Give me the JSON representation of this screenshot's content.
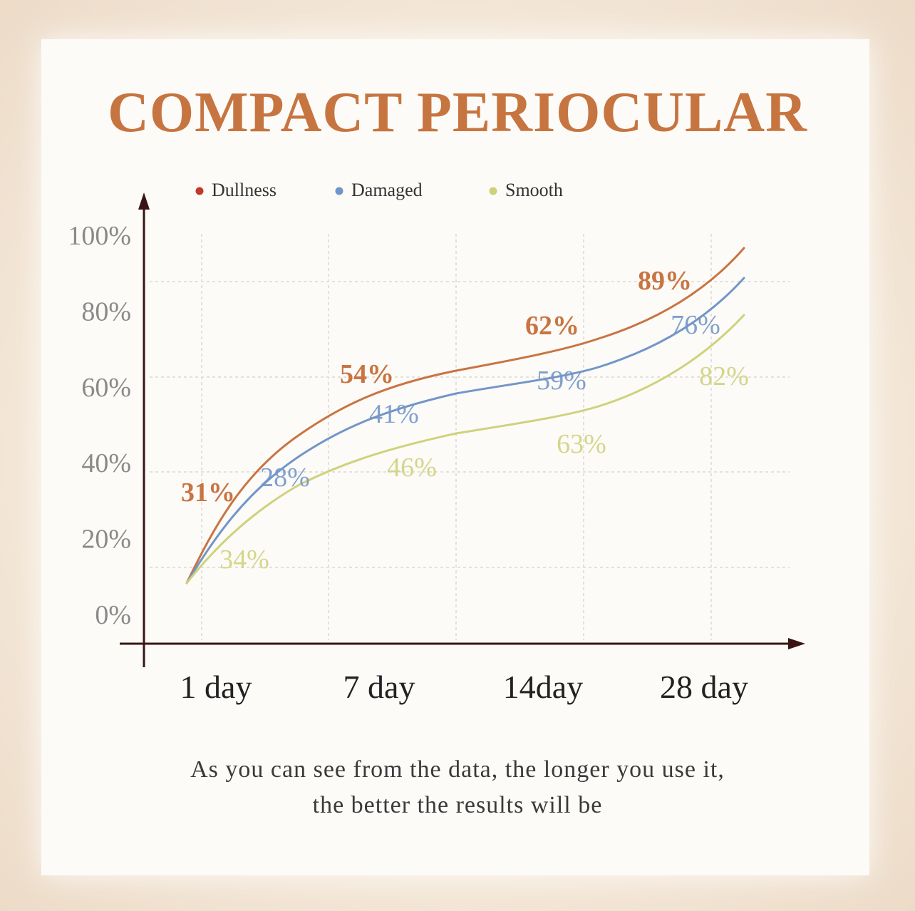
{
  "title": "COMPACT PERIOCULAR",
  "caption": {
    "line1": "As you can see from the data, the longer you use it,",
    "line2": "the better the results will be"
  },
  "chart_data": {
    "type": "line",
    "categories": [
      "1 day",
      "7 day",
      "14day",
      "28 day"
    ],
    "yticks": [
      "0%",
      "20%",
      "40%",
      "60%",
      "80%",
      "100%"
    ],
    "ylim": [
      0,
      100
    ],
    "grid": true,
    "legend_position": "top",
    "series": [
      {
        "name": "Dullness",
        "legend_color": "#c0392b",
        "line_color": "#c97442",
        "values": [
          31,
          54,
          62,
          89
        ],
        "labels": [
          "31%",
          "54%",
          "62%",
          "89%"
        ]
      },
      {
        "name": "Damaged",
        "legend_color": "#6f95c9",
        "line_color": "#7396c8",
        "values": [
          28,
          41,
          59,
          76
        ],
        "labels": [
          "28%",
          "41%",
          "59%",
          "76%"
        ]
      },
      {
        "name": "Smooth",
        "legend_color": "#cdd27a",
        "line_color": "#cfd27c",
        "values": [
          34,
          46,
          63,
          82
        ],
        "labels": [
          "34%",
          "46%",
          "63%",
          "82%"
        ]
      }
    ]
  }
}
